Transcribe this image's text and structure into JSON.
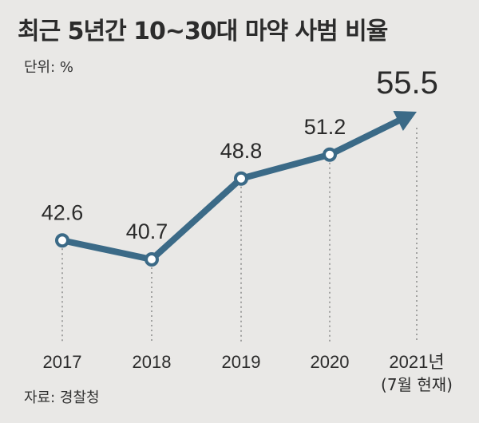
{
  "title": "최근 5년간 10~30대 마약 사범 비율",
  "unit_label": "단위: %",
  "source_label": "자료: 경찰청",
  "colors": {
    "line": "#3b6a87",
    "marker_fill": "#ffffff",
    "guide": "#8a8a8a",
    "background": "#e9e8e6"
  },
  "chart_data": {
    "type": "line",
    "categories": [
      "2017",
      "2018",
      "2019",
      "2020",
      "2021년"
    ],
    "category_sublabels": [
      "",
      "",
      "",
      "",
      "(7월 현재)"
    ],
    "values": [
      42.6,
      40.7,
      48.8,
      51.2,
      55.5
    ],
    "value_labels": [
      "42.6",
      "40.7",
      "48.8",
      "51.2",
      "55.5"
    ],
    "last_point_marker": "arrow",
    "grid": false,
    "legend": "none"
  }
}
